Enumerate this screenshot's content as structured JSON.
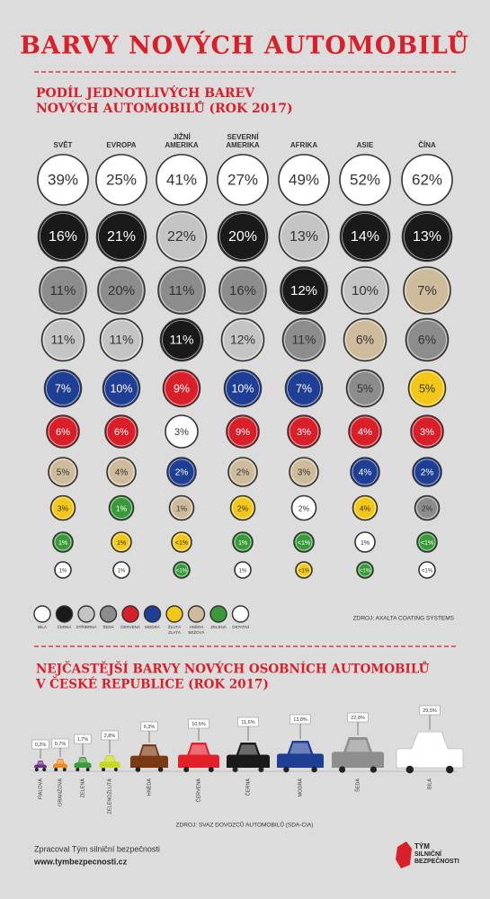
{
  "header": {
    "title": "BARVY NOVÝCH AUTOMOBILŮ"
  },
  "world": {
    "title_lines": [
      "PODÍL JEDNOTLIVÝCH BAREV",
      "NOVÝCH AUTOMOBILŮ (ROK 2017)"
    ],
    "regions": [
      {
        "name": [
          "SVĚT"
        ],
        "cells": [
          {
            "label": "39%",
            "color": "#ffffff"
          },
          {
            "label": "16%",
            "color": "#1a1a1a"
          },
          {
            "label": "11%",
            "color": "#8c8c8c"
          },
          {
            "label": "11%",
            "color": "#c4c4c4"
          },
          {
            "label": "7%",
            "color": "#1f3f95"
          },
          {
            "label": "6%",
            "color": "#d9202a"
          },
          {
            "label": "5%",
            "color": "#cdbb9c"
          },
          {
            "label": "3%",
            "color": "#f2c71a"
          },
          {
            "label": "1%",
            "color": "#3a9a3a"
          },
          {
            "label": "1%",
            "color": "#ffffff"
          }
        ]
      },
      {
        "name": [
          "EVROPA"
        ],
        "cells": [
          {
            "label": "25%",
            "color": "#ffffff"
          },
          {
            "label": "21%",
            "color": "#1a1a1a"
          },
          {
            "label": "20%",
            "color": "#8c8c8c"
          },
          {
            "label": "11%",
            "color": "#c4c4c4"
          },
          {
            "label": "10%",
            "color": "#1f3f95"
          },
          {
            "label": "6%",
            "color": "#d9202a"
          },
          {
            "label": "4%",
            "color": "#cdbb9c"
          },
          {
            "label": "1%",
            "color": "#3a9a3a"
          },
          {
            "label": "1%",
            "color": "#f2c71a"
          },
          {
            "label": "1%",
            "color": "#ffffff"
          }
        ]
      },
      {
        "name": [
          "JIŽNÍ",
          "AMERIKA"
        ],
        "cells": [
          {
            "label": "41%",
            "color": "#ffffff"
          },
          {
            "label": "22%",
            "color": "#c4c4c4"
          },
          {
            "label": "11%",
            "color": "#8c8c8c"
          },
          {
            "label": "11%",
            "color": "#1a1a1a"
          },
          {
            "label": "9%",
            "color": "#d9202a"
          },
          {
            "label": "3%",
            "color": "#ffffff"
          },
          {
            "label": "2%",
            "color": "#1f3f95"
          },
          {
            "label": "1%",
            "color": "#cdbb9c"
          },
          {
            "label": "<1%",
            "color": "#f2c71a"
          },
          {
            "label": "<1%",
            "color": "#3a9a3a"
          }
        ]
      },
      {
        "name": [
          "SEVERNÍ",
          "AMERIKA"
        ],
        "cells": [
          {
            "label": "27%",
            "color": "#ffffff"
          },
          {
            "label": "20%",
            "color": "#1a1a1a"
          },
          {
            "label": "16%",
            "color": "#8c8c8c"
          },
          {
            "label": "12%",
            "color": "#c4c4c4"
          },
          {
            "label": "10%",
            "color": "#1f3f95"
          },
          {
            "label": "9%",
            "color": "#d9202a"
          },
          {
            "label": "2%",
            "color": "#cdbb9c"
          },
          {
            "label": "2%",
            "color": "#f2c71a"
          },
          {
            "label": "1%",
            "color": "#3a9a3a"
          },
          {
            "label": "1%",
            "color": "#ffffff"
          }
        ]
      },
      {
        "name": [
          "AFRIKA"
        ],
        "cells": [
          {
            "label": "49%",
            "color": "#ffffff"
          },
          {
            "label": "13%",
            "color": "#c4c4c4"
          },
          {
            "label": "12%",
            "color": "#1a1a1a"
          },
          {
            "label": "11%",
            "color": "#8c8c8c"
          },
          {
            "label": "7%",
            "color": "#1f3f95"
          },
          {
            "label": "3%",
            "color": "#d9202a"
          },
          {
            "label": "3%",
            "color": "#cdbb9c"
          },
          {
            "label": "2%",
            "color": "#ffffff"
          },
          {
            "label": "<1%",
            "color": "#3a9a3a"
          },
          {
            "label": "<1%",
            "color": "#f2c71a"
          }
        ]
      },
      {
        "name": [
          "ASIE"
        ],
        "cells": [
          {
            "label": "52%",
            "color": "#ffffff"
          },
          {
            "label": "14%",
            "color": "#1a1a1a"
          },
          {
            "label": "10%",
            "color": "#c4c4c4"
          },
          {
            "label": "6%",
            "color": "#cdbb9c"
          },
          {
            "label": "5%",
            "color": "#8c8c8c"
          },
          {
            "label": "4%",
            "color": "#d9202a"
          },
          {
            "label": "4%",
            "color": "#1f3f95"
          },
          {
            "label": "4%",
            "color": "#f2c71a"
          },
          {
            "label": "1%",
            "color": "#ffffff"
          },
          {
            "label": "<1%",
            "color": "#3a9a3a"
          }
        ]
      },
      {
        "name": [
          "ČÍNA"
        ],
        "cells": [
          {
            "label": "62%",
            "color": "#ffffff"
          },
          {
            "label": "13%",
            "color": "#1a1a1a"
          },
          {
            "label": "7%",
            "color": "#cdbb9c"
          },
          {
            "label": "6%",
            "color": "#8c8c8c"
          },
          {
            "label": "5%",
            "color": "#f2c71a"
          },
          {
            "label": "3%",
            "color": "#d9202a"
          },
          {
            "label": "2%",
            "color": "#1f3f95"
          },
          {
            "label": "2%",
            "color": "#8c8c8c"
          },
          {
            "label": "<1%",
            "color": "#3a9a3a"
          },
          {
            "label": "<1%",
            "color": "#ffffff"
          }
        ]
      }
    ],
    "legend": [
      {
        "label": [
          "BÍLÁ"
        ],
        "color": "#ffffff"
      },
      {
        "label": [
          "ČERNÁ"
        ],
        "color": "#1a1a1a"
      },
      {
        "label": [
          "STŘÍBRNÁ"
        ],
        "color": "#c4c4c4"
      },
      {
        "label": [
          "ŠEDÁ"
        ],
        "color": "#8c8c8c"
      },
      {
        "label": [
          "ČERVENÁ"
        ],
        "color": "#d9202a"
      },
      {
        "label": [
          "MODRÁ"
        ],
        "color": "#1f3f95"
      },
      {
        "label": [
          "ŽLUTÁ",
          "ZLATÁ"
        ],
        "color": "#f2c71a"
      },
      {
        "label": [
          "HNĚDÁ",
          "BÉŽOVÁ"
        ],
        "color": "#cdbb9c"
      },
      {
        "label": [
          "ZELENÁ"
        ],
        "color": "#3a9a3a"
      },
      {
        "label": [
          "OSTATNÍ"
        ],
        "color": "#ffffff"
      }
    ],
    "source": "ZDROJ: AXALTA COATING SYSTEMS"
  },
  "cz": {
    "title_lines": [
      "NEJČASTĚJŠÍ BARVY NOVÝCH OSOBNÍCH AUTOMOBILŮ",
      "V ČESKÉ REPUBLICE (ROK 2017)"
    ],
    "items": [
      {
        "name": "FIALOVÁ",
        "label": "0,2%",
        "color": "#6b2d8a"
      },
      {
        "name": "ORANŽOVÁ",
        "label": "0,7%",
        "color": "#f08a1e"
      },
      {
        "name": "ZELENÁ",
        "label": "1,7%",
        "color": "#3a9a3a"
      },
      {
        "name": "ZELENOŽLUTÁ",
        "label": "2,8%",
        "color": "#c8d620"
      },
      {
        "name": "HNĚDÁ",
        "label": "6,3%",
        "color": "#7a3a12"
      },
      {
        "name": "ČERVENÁ",
        "label": "10,5%",
        "color": "#e2202a"
      },
      {
        "name": "ČERNÁ",
        "label": "11,6%",
        "color": "#1a1a1a"
      },
      {
        "name": "MODRÁ",
        "label": "13,8%",
        "color": "#1f3f95"
      },
      {
        "name": "ŠEDÁ",
        "label": "22,8%",
        "color": "#8e8e8e"
      },
      {
        "name": "BÍLÁ",
        "label": "29,5%",
        "color": "#ffffff"
      }
    ],
    "source": "ZDROJ: SVAZ DOVOZCŮ AUTOMOBILŮ (SDA-CIA)"
  },
  "footer": {
    "credit": "Zpracoval Tým silniční bezpečnosti",
    "url": "www.tymbezpecnosti.cz",
    "logo": [
      "TÝM",
      "SILNIČNÍ",
      "BEZPEČNOSTI"
    ]
  }
}
